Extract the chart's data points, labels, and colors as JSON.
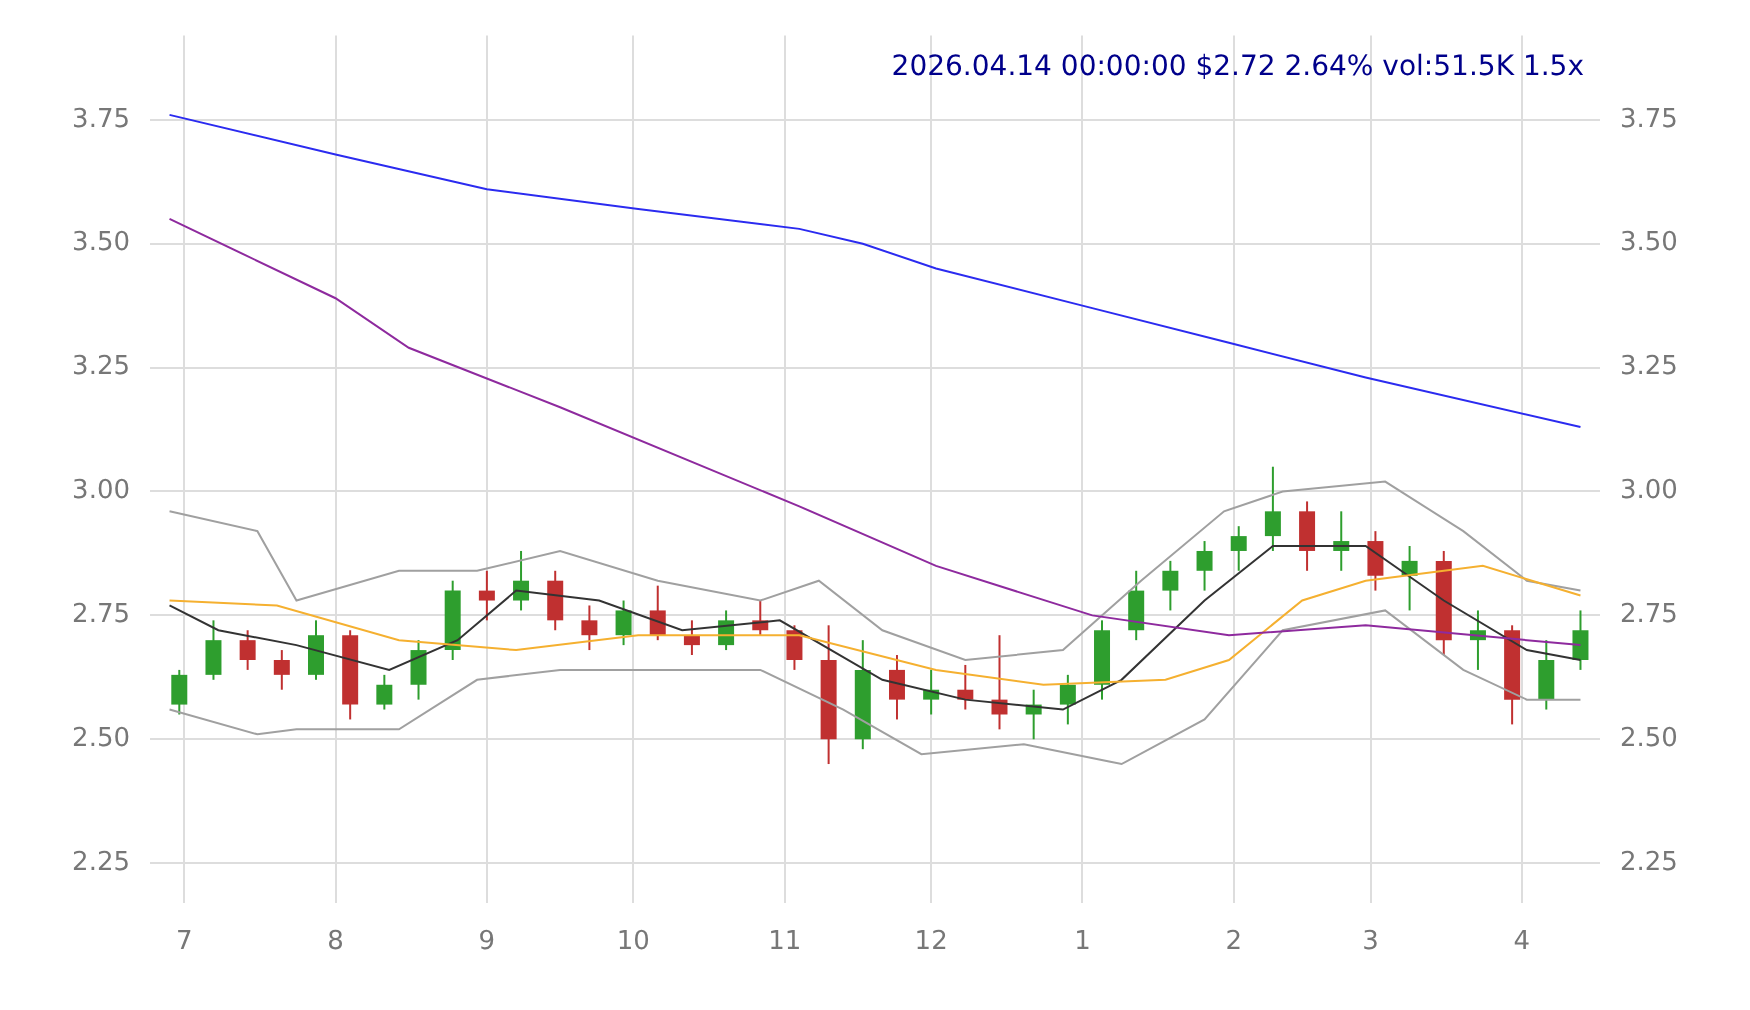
{
  "chart_data": {
    "type": "candlestick",
    "title": "2026.04.14 00:00:00 $2.72 2.64% vol:51.5K 1.5x",
    "x": [
      "2025-06-30",
      "2025-07-07",
      "2025-07-14",
      "2025-07-21",
      "2025-07-28",
      "2025-08-04",
      "2025-08-11",
      "2025-08-18",
      "2025-08-25",
      "2025-09-01",
      "2025-09-08",
      "2025-09-15",
      "2025-09-22",
      "2025-09-29",
      "2025-10-06",
      "2025-10-13",
      "2025-10-20",
      "2025-10-27",
      "2025-11-03",
      "2025-11-10",
      "2025-11-17",
      "2025-11-24",
      "2025-12-01",
      "2025-12-08",
      "2025-12-15",
      "2025-12-22",
      "2025-12-29",
      "2026-01-05",
      "2026-01-12",
      "2026-01-19",
      "2026-01-26",
      "2026-02-02",
      "2026-02-09",
      "2026-02-16",
      "2026-02-23",
      "2026-03-02",
      "2026-03-09",
      "2026-03-16",
      "2026-03-23",
      "2026-03-30",
      "2026-04-06",
      "2026-04-13"
    ],
    "ohlc": [
      [
        2.57,
        2.64,
        2.55,
        2.63
      ],
      [
        2.63,
        2.74,
        2.62,
        2.7
      ],
      [
        2.7,
        2.72,
        2.64,
        2.66
      ],
      [
        2.66,
        2.68,
        2.6,
        2.63
      ],
      [
        2.63,
        2.74,
        2.62,
        2.71
      ],
      [
        2.71,
        2.72,
        2.54,
        2.57
      ],
      [
        2.57,
        2.63,
        2.56,
        2.61
      ],
      [
        2.61,
        2.7,
        2.58,
        2.68
      ],
      [
        2.68,
        2.82,
        2.66,
        2.8
      ],
      [
        2.8,
        2.84,
        2.74,
        2.78
      ],
      [
        2.78,
        2.88,
        2.76,
        2.82
      ],
      [
        2.82,
        2.84,
        2.72,
        2.74
      ],
      [
        2.74,
        2.77,
        2.68,
        2.71
      ],
      [
        2.71,
        2.78,
        2.69,
        2.76
      ],
      [
        2.76,
        2.81,
        2.7,
        2.71
      ],
      [
        2.71,
        2.74,
        2.67,
        2.69
      ],
      [
        2.69,
        2.76,
        2.68,
        2.74
      ],
      [
        2.74,
        2.78,
        2.71,
        2.72
      ],
      [
        2.72,
        2.73,
        2.64,
        2.66
      ],
      [
        2.66,
        2.73,
        2.45,
        2.5
      ],
      [
        2.5,
        2.7,
        2.48,
        2.64
      ],
      [
        2.64,
        2.67,
        2.54,
        2.58
      ],
      [
        2.58,
        2.64,
        2.55,
        2.6
      ],
      [
        2.6,
        2.65,
        2.56,
        2.58
      ],
      [
        2.58,
        2.71,
        2.52,
        2.55
      ],
      [
        2.55,
        2.6,
        2.5,
        2.57
      ],
      [
        2.57,
        2.63,
        2.53,
        2.61
      ],
      [
        2.61,
        2.74,
        2.58,
        2.72
      ],
      [
        2.72,
        2.84,
        2.7,
        2.8
      ],
      [
        2.8,
        2.86,
        2.76,
        2.84
      ],
      [
        2.84,
        2.9,
        2.8,
        2.88
      ],
      [
        2.88,
        2.93,
        2.84,
        2.91
      ],
      [
        2.91,
        3.05,
        2.88,
        2.96
      ],
      [
        2.96,
        2.98,
        2.84,
        2.88
      ],
      [
        2.88,
        2.96,
        2.84,
        2.9
      ],
      [
        2.9,
        2.92,
        2.8,
        2.83
      ],
      [
        2.83,
        2.89,
        2.76,
        2.86
      ],
      [
        2.86,
        2.88,
        2.67,
        2.7
      ],
      [
        2.7,
        2.76,
        2.64,
        2.72
      ],
      [
        2.72,
        2.73,
        2.53,
        2.58
      ],
      [
        2.58,
        2.7,
        2.56,
        2.66
      ],
      [
        2.66,
        2.76,
        2.64,
        2.72
      ]
    ],
    "colors": [
      "#2e9e2e",
      "#2e9e2e",
      "#c03030",
      "#c03030",
      "#2e9e2e",
      "#c03030",
      "#2e9e2e",
      "#2e9e2e",
      "#2e9e2e",
      "#c03030",
      "#2e9e2e",
      "#c03030",
      "#c03030",
      "#2e9e2e",
      "#c03030",
      "#c03030",
      "#2e9e2e",
      "#c03030",
      "#c03030",
      "#c03030",
      "#2e9e2e",
      "#c03030",
      "#2e9e2e",
      "#c03030",
      "#c03030",
      "#2e9e2e",
      "#2e9e2e",
      "#2e9e2e",
      "#2e9e2e",
      "#2e9e2e",
      "#2e9e2e",
      "#2e9e2e",
      "#2e9e2e",
      "#c03030",
      "#2e9e2e",
      "#c03030",
      "#2e9e2e",
      "#c03030",
      "#2e9e2e",
      "#c03030",
      "#2e9e2e",
      "#2e9e2e"
    ],
    "series": [
      {
        "type": "line",
        "color": "#2b2bf0",
        "x": [
          "2025-06-28",
          "2025-08-01",
          "2025-09-01",
          "2025-10-02",
          "2025-11-04",
          "2025-11-17",
          "2025-12-02",
          "2026-01-03",
          "2026-01-31",
          "2026-02-28",
          "2026-04-13"
        ],
        "values": [
          3.76,
          3.68,
          3.61,
          3.57,
          3.53,
          3.5,
          3.45,
          3.37,
          3.3,
          3.23,
          3.13
        ]
      },
      {
        "type": "line",
        "color": "#8e2a9e",
        "x": [
          "2025-06-28",
          "2025-08-01",
          "2025-08-16",
          "2025-09-16",
          "2025-11-04",
          "2025-12-02",
          "2026-01-03",
          "2026-01-31",
          "2026-02-28",
          "2026-04-13"
        ],
        "values": [
          3.55,
          3.39,
          3.29,
          3.17,
          2.97,
          2.85,
          2.75,
          2.71,
          2.73,
          2.69
        ]
      },
      {
        "type": "line",
        "color": "#f5b030",
        "x": [
          "2025-06-28",
          "2025-07-20",
          "2025-08-14",
          "2025-09-07",
          "2025-10-02",
          "2025-11-04",
          "2025-12-02",
          "2025-12-24",
          "2026-01-18",
          "2026-01-31",
          "2026-02-15",
          "2026-02-28",
          "2026-03-24",
          "2026-04-13"
        ],
        "values": [
          2.78,
          2.77,
          2.7,
          2.68,
          2.71,
          2.71,
          2.64,
          2.61,
          2.62,
          2.66,
          2.78,
          2.82,
          2.85,
          2.79
        ]
      },
      {
        "type": "line",
        "color": "#333333",
        "x": [
          "2025-06-28",
          "2025-07-08",
          "2025-07-24",
          "2025-08-12",
          "2025-08-26",
          "2025-09-07",
          "2025-09-24",
          "2025-10-11",
          "2025-10-31",
          "2025-11-21",
          "2025-12-08",
          "2025-12-28",
          "2026-01-09",
          "2026-01-26",
          "2026-02-09",
          "2026-02-28",
          "2026-03-16",
          "2026-04-02",
          "2026-04-13"
        ],
        "values": [
          2.77,
          2.72,
          2.69,
          2.64,
          2.7,
          2.8,
          2.78,
          2.72,
          2.74,
          2.62,
          2.58,
          2.56,
          2.62,
          2.78,
          2.89,
          2.89,
          2.78,
          2.68,
          2.66
        ]
      },
      {
        "type": "line",
        "color": "#a0a0a0",
        "x": [
          "2025-06-28",
          "2025-07-16",
          "2025-07-24",
          "2025-08-14",
          "2025-08-30",
          "2025-09-16",
          "2025-10-06",
          "2025-10-27",
          "2025-11-08",
          "2025-11-21",
          "2025-12-08",
          "2025-12-28",
          "2026-01-13",
          "2026-01-30",
          "2026-02-11",
          "2026-03-04",
          "2026-03-20",
          "2026-04-02",
          "2026-04-13"
        ],
        "values": [
          2.96,
          2.92,
          2.78,
          2.84,
          2.84,
          2.88,
          2.82,
          2.78,
          2.82,
          2.72,
          2.66,
          2.68,
          2.82,
          2.96,
          3.0,
          3.02,
          2.92,
          2.82,
          2.8
        ]
      },
      {
        "type": "line",
        "color": "#a0a0a0",
        "x": [
          "2025-06-28",
          "2025-07-16",
          "2025-07-24",
          "2025-08-14",
          "2025-08-30",
          "2025-09-16",
          "2025-10-06",
          "2025-10-27",
          "2025-11-13",
          "2025-11-29",
          "2025-12-20",
          "2026-01-09",
          "2026-01-26",
          "2026-02-11",
          "2026-03-04",
          "2026-03-20",
          "2026-04-02",
          "2026-04-13"
        ],
        "values": [
          2.56,
          2.51,
          2.52,
          2.52,
          2.62,
          2.64,
          2.64,
          2.64,
          2.56,
          2.47,
          2.49,
          2.45,
          2.54,
          2.72,
          2.76,
          2.64,
          2.58,
          2.58
        ]
      }
    ],
    "xlim": [
      "2025-06-24",
      "2026-04-17"
    ],
    "xticks": [
      {
        "value": "2025-07-01",
        "label": "7"
      },
      {
        "value": "2025-08-01",
        "label": "8"
      },
      {
        "value": "2025-09-01",
        "label": "9"
      },
      {
        "value": "2025-10-01",
        "label": "10"
      },
      {
        "value": "2025-11-01",
        "label": "11"
      },
      {
        "value": "2025-12-01",
        "label": "12"
      },
      {
        "value": "2026-01-01",
        "label": "1"
      },
      {
        "value": "2026-02-01",
        "label": "2"
      },
      {
        "value": "2026-03-01",
        "label": "3"
      },
      {
        "value": "2026-04-01",
        "label": "4"
      }
    ],
    "ylim": [
      2.17,
      3.92
    ],
    "yticks": [
      2.25,
      {
        "value": 2.5,
        "label": "2.50"
      },
      2.75,
      {
        "value": 3,
        "label": "3.00"
      },
      3.25,
      {
        "value": 3.5,
        "label": "3.50"
      },
      3.75
    ],
    "y2lim": [
      2.17,
      3.92
    ],
    "y2ticks": [
      2.25,
      {
        "value": 2.5,
        "label": "2.50"
      },
      2.75,
      {
        "value": 3,
        "label": "3.00"
      },
      3.25,
      {
        "value": 3.5,
        "label": "3.50"
      },
      3.75
    ],
    "grid": true,
    "legend": false
  }
}
